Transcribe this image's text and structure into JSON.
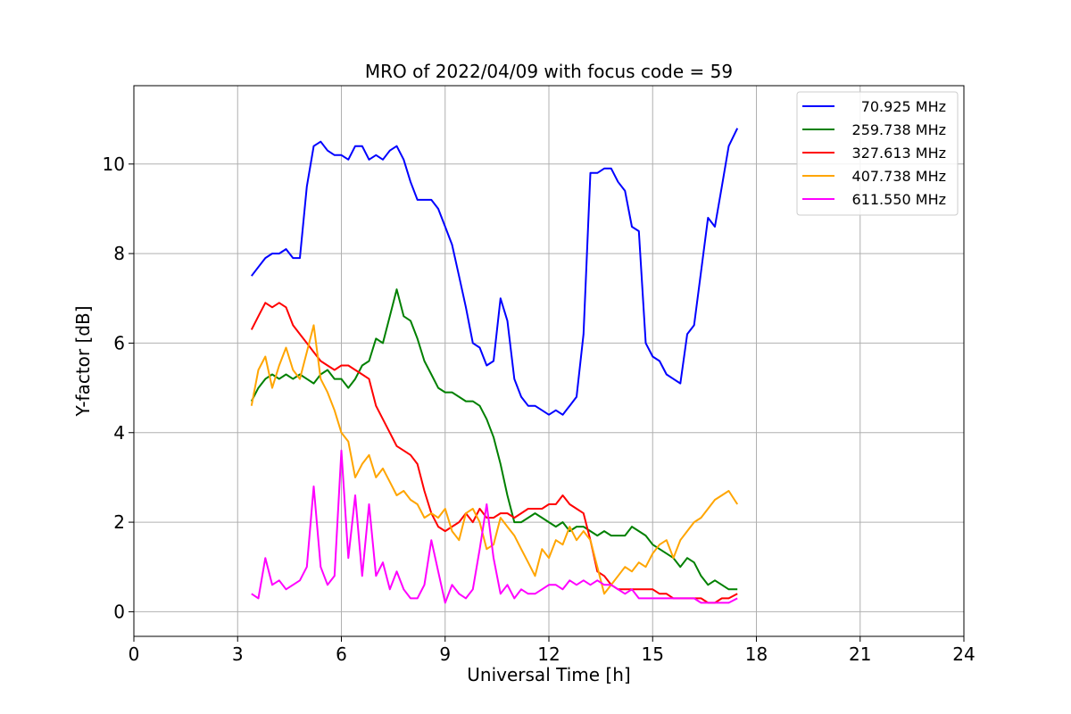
{
  "chart_data": {
    "type": "line",
    "title": "MRO of 2022/04/09 with focus code = 59",
    "xlabel": "Universal Time [h]",
    "ylabel": "Y-factor [dB]",
    "xlim": [
      0,
      24
    ],
    "ylim": [
      -0.55,
      11.75
    ],
    "xticks": [
      0,
      3,
      6,
      9,
      12,
      15,
      18,
      21,
      24
    ],
    "yticks": [
      0,
      2,
      4,
      6,
      8,
      10
    ],
    "grid": true,
    "legend_position": "top-right",
    "series": [
      {
        "name": "70.925 MHz",
        "color": "#0000ff",
        "x": [
          3.4,
          3.6,
          3.8,
          4.0,
          4.2,
          4.4,
          4.6,
          4.8,
          5.0,
          5.2,
          5.4,
          5.6,
          5.8,
          6.0,
          6.2,
          6.4,
          6.6,
          6.8,
          7.0,
          7.2,
          7.4,
          7.6,
          7.8,
          8.0,
          8.2,
          8.4,
          8.6,
          8.8,
          9.0,
          9.2,
          9.4,
          9.6,
          9.8,
          10.0,
          10.2,
          10.4,
          10.6,
          10.8,
          11.0,
          11.2,
          11.4,
          11.6,
          11.8,
          12.0,
          12.2,
          12.4,
          12.6,
          12.8,
          13.0,
          13.2,
          13.4,
          13.6,
          13.8,
          14.0,
          14.2,
          14.4,
          14.6,
          14.8,
          15.0,
          15.2,
          15.4,
          15.6,
          15.8,
          16.0,
          16.2,
          16.4,
          16.6,
          16.8,
          17.0,
          17.2,
          17.45
        ],
        "y": [
          7.5,
          7.7,
          7.9,
          8.0,
          8.0,
          8.1,
          7.9,
          7.9,
          9.5,
          10.4,
          10.5,
          10.3,
          10.2,
          10.2,
          10.1,
          10.4,
          10.4,
          10.1,
          10.2,
          10.1,
          10.3,
          10.4,
          10.1,
          9.6,
          9.2,
          9.2,
          9.2,
          9.0,
          8.6,
          8.2,
          7.5,
          6.8,
          6.0,
          5.9,
          5.5,
          5.6,
          7.0,
          6.5,
          5.2,
          4.8,
          4.6,
          4.6,
          4.5,
          4.4,
          4.5,
          4.4,
          4.6,
          4.8,
          6.2,
          9.8,
          9.8,
          9.9,
          9.9,
          9.6,
          9.4,
          8.6,
          8.5,
          6.0,
          5.7,
          5.6,
          5.3,
          5.2,
          5.1,
          6.2,
          6.4,
          7.6,
          8.8,
          8.6,
          9.5,
          10.4,
          10.8
        ]
      },
      {
        "name": "259.738 MHz",
        "color": "#008000",
        "x": [
          3.4,
          3.6,
          3.8,
          4.0,
          4.2,
          4.4,
          4.6,
          4.8,
          5.0,
          5.2,
          5.4,
          5.6,
          5.8,
          6.0,
          6.2,
          6.4,
          6.6,
          6.8,
          7.0,
          7.2,
          7.4,
          7.6,
          7.8,
          8.0,
          8.2,
          8.4,
          8.6,
          8.8,
          9.0,
          9.2,
          9.4,
          9.6,
          9.8,
          10.0,
          10.2,
          10.4,
          10.6,
          10.8,
          11.0,
          11.2,
          11.4,
          11.6,
          11.8,
          12.0,
          12.2,
          12.4,
          12.6,
          12.8,
          13.0,
          13.2,
          13.4,
          13.6,
          13.8,
          14.0,
          14.2,
          14.4,
          14.6,
          14.8,
          15.0,
          15.2,
          15.4,
          15.6,
          15.8,
          16.0,
          16.2,
          16.4,
          16.6,
          16.8,
          17.0,
          17.2,
          17.45
        ],
        "y": [
          4.7,
          5.0,
          5.2,
          5.3,
          5.2,
          5.3,
          5.2,
          5.3,
          5.2,
          5.1,
          5.3,
          5.4,
          5.2,
          5.2,
          5.0,
          5.2,
          5.5,
          5.6,
          6.1,
          6.0,
          6.6,
          7.2,
          6.6,
          6.5,
          6.1,
          5.6,
          5.3,
          5.0,
          4.9,
          4.9,
          4.8,
          4.7,
          4.7,
          4.6,
          4.3,
          3.9,
          3.3,
          2.6,
          2.0,
          2.0,
          2.1,
          2.2,
          2.1,
          2.0,
          1.9,
          2.0,
          1.8,
          1.9,
          1.9,
          1.8,
          1.7,
          1.8,
          1.7,
          1.7,
          1.7,
          1.9,
          1.8,
          1.7,
          1.5,
          1.4,
          1.3,
          1.2,
          1.0,
          1.2,
          1.1,
          0.8,
          0.6,
          0.7,
          0.6,
          0.5,
          0.5
        ]
      },
      {
        "name": "327.613 MHz",
        "color": "#ff0000",
        "x": [
          3.4,
          3.6,
          3.8,
          4.0,
          4.2,
          4.4,
          4.6,
          4.8,
          5.0,
          5.2,
          5.4,
          5.6,
          5.8,
          6.0,
          6.2,
          6.4,
          6.6,
          6.8,
          7.0,
          7.2,
          7.4,
          7.6,
          7.8,
          8.0,
          8.2,
          8.4,
          8.6,
          8.8,
          9.0,
          9.2,
          9.4,
          9.6,
          9.8,
          10.0,
          10.2,
          10.4,
          10.6,
          10.8,
          11.0,
          11.2,
          11.4,
          11.6,
          11.8,
          12.0,
          12.2,
          12.4,
          12.6,
          12.8,
          13.0,
          13.2,
          13.4,
          13.6,
          13.8,
          14.0,
          14.2,
          14.4,
          14.6,
          14.8,
          15.0,
          15.2,
          15.4,
          15.6,
          15.8,
          16.0,
          16.2,
          16.4,
          16.6,
          16.8,
          17.0,
          17.2,
          17.45
        ],
        "y": [
          6.3,
          6.6,
          6.9,
          6.8,
          6.9,
          6.8,
          6.4,
          6.2,
          6.0,
          5.8,
          5.6,
          5.5,
          5.4,
          5.5,
          5.5,
          5.4,
          5.3,
          5.2,
          4.6,
          4.3,
          4.0,
          3.7,
          3.6,
          3.5,
          3.3,
          2.7,
          2.2,
          1.9,
          1.8,
          1.9,
          2.0,
          2.2,
          2.0,
          2.3,
          2.1,
          2.1,
          2.2,
          2.2,
          2.1,
          2.2,
          2.3,
          2.3,
          2.3,
          2.4,
          2.4,
          2.6,
          2.4,
          2.3,
          2.2,
          1.6,
          0.9,
          0.8,
          0.6,
          0.5,
          0.5,
          0.5,
          0.5,
          0.5,
          0.5,
          0.4,
          0.4,
          0.3,
          0.3,
          0.3,
          0.3,
          0.3,
          0.2,
          0.2,
          0.3,
          0.3,
          0.4
        ]
      },
      {
        "name": "407.738 MHz",
        "color": "#ffa500",
        "x": [
          3.4,
          3.6,
          3.8,
          4.0,
          4.2,
          4.4,
          4.6,
          4.8,
          5.0,
          5.2,
          5.4,
          5.6,
          5.8,
          6.0,
          6.2,
          6.4,
          6.6,
          6.8,
          7.0,
          7.2,
          7.4,
          7.6,
          7.8,
          8.0,
          8.2,
          8.4,
          8.6,
          8.8,
          9.0,
          9.2,
          9.4,
          9.6,
          9.8,
          10.0,
          10.2,
          10.4,
          10.6,
          10.8,
          11.0,
          11.2,
          11.4,
          11.6,
          11.8,
          12.0,
          12.2,
          12.4,
          12.6,
          12.8,
          13.0,
          13.2,
          13.4,
          13.6,
          13.8,
          14.0,
          14.2,
          14.4,
          14.6,
          14.8,
          15.0,
          15.2,
          15.4,
          15.6,
          15.8,
          16.0,
          16.2,
          16.4,
          16.6,
          16.8,
          17.0,
          17.2,
          17.45
        ],
        "y": [
          4.6,
          5.4,
          5.7,
          5.0,
          5.5,
          5.9,
          5.4,
          5.2,
          5.8,
          6.4,
          5.2,
          4.9,
          4.5,
          4.0,
          3.8,
          3.0,
          3.3,
          3.5,
          3.0,
          3.2,
          2.9,
          2.6,
          2.7,
          2.5,
          2.4,
          2.1,
          2.2,
          2.1,
          2.3,
          1.8,
          1.6,
          2.2,
          2.3,
          2.0,
          1.4,
          1.5,
          2.1,
          1.9,
          1.7,
          1.4,
          1.1,
          0.8,
          1.4,
          1.2,
          1.6,
          1.5,
          1.9,
          1.6,
          1.8,
          1.6,
          1.0,
          0.4,
          0.6,
          0.8,
          1.0,
          0.9,
          1.1,
          1.0,
          1.3,
          1.5,
          1.6,
          1.2,
          1.6,
          1.8,
          2.0,
          2.1,
          2.3,
          2.5,
          2.6,
          2.7,
          2.4
        ]
      },
      {
        "name": "611.550 MHz",
        "color": "#ff00ff",
        "x": [
          3.4,
          3.6,
          3.8,
          4.0,
          4.2,
          4.4,
          4.6,
          4.8,
          5.0,
          5.2,
          5.4,
          5.6,
          5.8,
          6.0,
          6.2,
          6.4,
          6.6,
          6.8,
          7.0,
          7.2,
          7.4,
          7.6,
          7.8,
          8.0,
          8.2,
          8.4,
          8.6,
          8.8,
          9.0,
          9.2,
          9.4,
          9.6,
          9.8,
          10.0,
          10.2,
          10.4,
          10.6,
          10.8,
          11.0,
          11.2,
          11.4,
          11.6,
          11.8,
          12.0,
          12.2,
          12.4,
          12.6,
          12.8,
          13.0,
          13.2,
          13.4,
          13.6,
          13.8,
          14.0,
          14.2,
          14.4,
          14.6,
          14.8,
          15.0,
          15.2,
          15.4,
          15.6,
          15.8,
          16.0,
          16.2,
          16.4,
          16.6,
          16.8,
          17.0,
          17.2,
          17.45
        ],
        "y": [
          0.4,
          0.3,
          1.2,
          0.6,
          0.7,
          0.5,
          0.6,
          0.7,
          1.0,
          2.8,
          1.0,
          0.6,
          0.8,
          3.6,
          1.2,
          2.6,
          0.8,
          2.4,
          0.8,
          1.1,
          0.5,
          0.9,
          0.5,
          0.3,
          0.3,
          0.6,
          1.6,
          0.9,
          0.2,
          0.6,
          0.4,
          0.3,
          0.5,
          1.4,
          2.4,
          1.2,
          0.4,
          0.6,
          0.3,
          0.5,
          0.4,
          0.4,
          0.5,
          0.6,
          0.6,
          0.5,
          0.7,
          0.6,
          0.7,
          0.6,
          0.7,
          0.6,
          0.6,
          0.5,
          0.4,
          0.5,
          0.3,
          0.3,
          0.3,
          0.3,
          0.3,
          0.3,
          0.3,
          0.3,
          0.3,
          0.2,
          0.2,
          0.2,
          0.2,
          0.2,
          0.3
        ]
      }
    ]
  }
}
